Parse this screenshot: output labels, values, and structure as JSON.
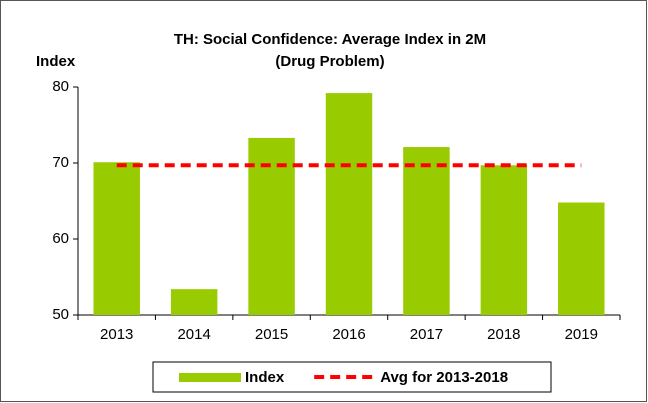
{
  "chart_data": {
    "type": "bar",
    "title": "TH: Social Confidence: Average Index in 2M",
    "subtitle": "(Drug Problem)",
    "y_label": "Index",
    "categories": [
      "2013",
      "2014",
      "2015",
      "2016",
      "2017",
      "2018",
      "2019"
    ],
    "series": [
      {
        "name": "Index",
        "type": "bar",
        "color": "#99cc00",
        "values": [
          70.1,
          53.4,
          73.3,
          79.2,
          72.1,
          69.7,
          64.8
        ]
      },
      {
        "name": "Avg for 2013-2018",
        "type": "line",
        "dashed": true,
        "color": "#ff0000",
        "values": [
          69.7,
          69.7,
          69.7,
          69.7,
          69.7,
          69.7,
          69.7
        ]
      }
    ],
    "ylim": [
      50,
      80
    ],
    "yticks": [
      50,
      60,
      70,
      80
    ],
    "grid": false,
    "legend": "bottom"
  }
}
